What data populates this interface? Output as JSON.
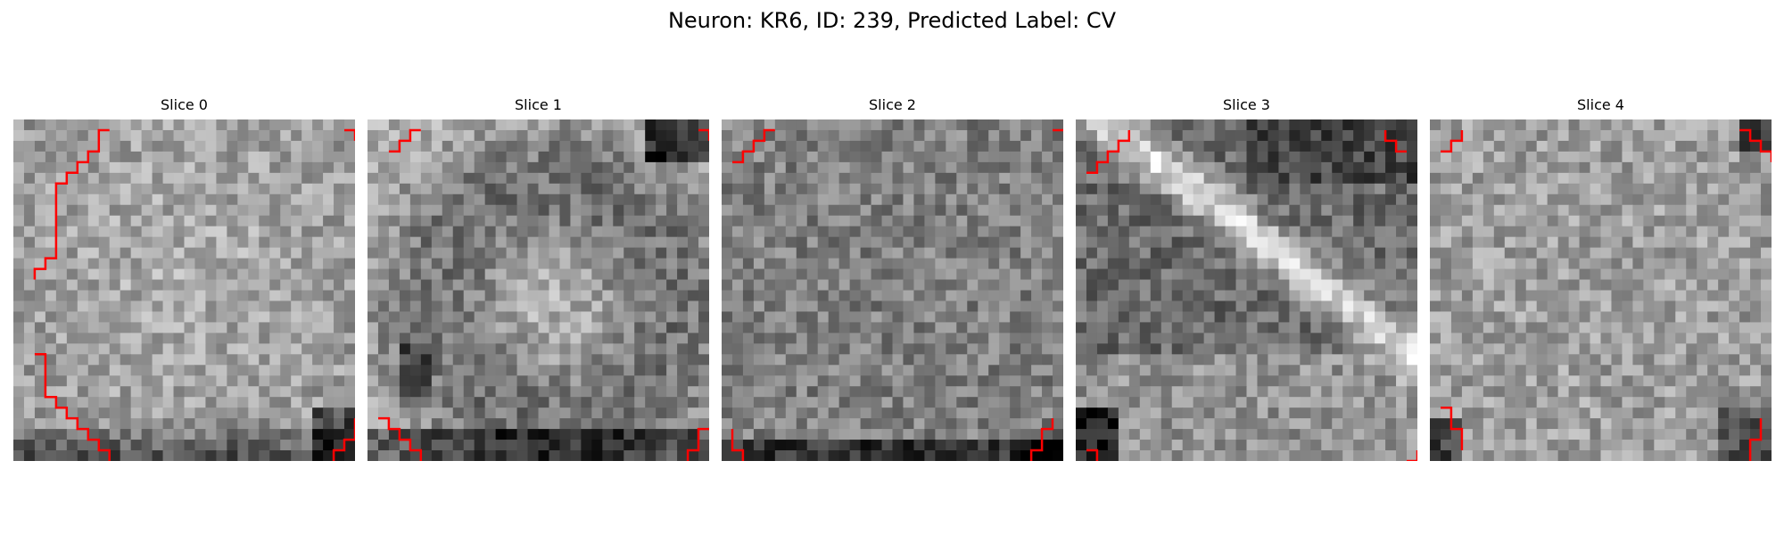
{
  "figure": {
    "title": "Neuron: KR6, ID: 239, Predicted Label: CV"
  },
  "panels": [
    {
      "label": "Slice 0"
    },
    {
      "label": "Slice 1"
    },
    {
      "label": "Slice 2"
    },
    {
      "label": "Slice 3"
    },
    {
      "label": "Slice 4"
    }
  ],
  "colors": {
    "contour": "#ff0000",
    "colormap": "grayscale"
  }
}
